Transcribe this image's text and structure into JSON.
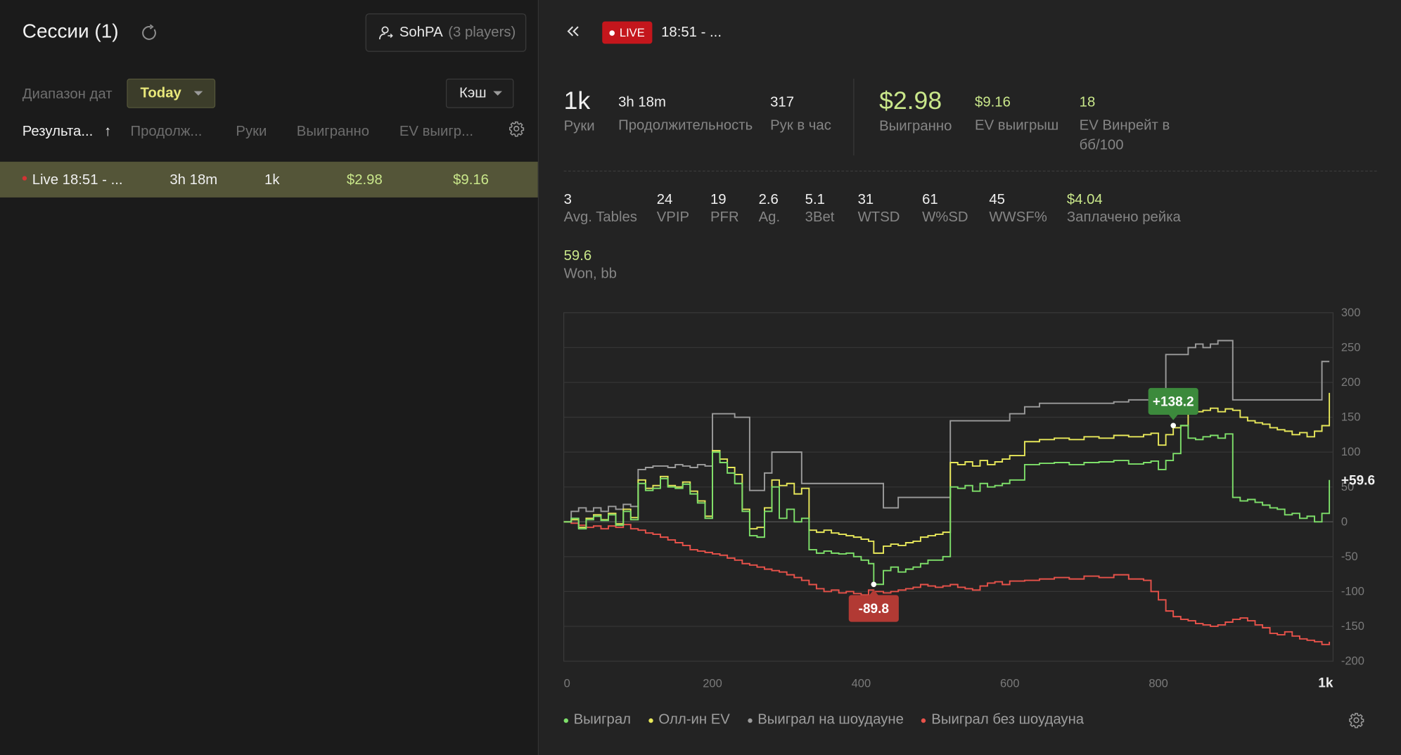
{
  "sessions": {
    "title": "Сессии (1)",
    "player_name": "SohPA",
    "player_count": "(3 players)",
    "date_label": "Диапазон дат",
    "date_value": "Today",
    "game_type": "Кэш",
    "columns": [
      "Результа...",
      "Продолж...",
      "Руки",
      "Выигранно",
      "EV выигр..."
    ],
    "sort_arrow": "↑",
    "rows": [
      {
        "name": "Live 18:51 - ...",
        "duration": "3h 18m",
        "hands": "1k",
        "won": "$2.98",
        "ev": "$9.16"
      }
    ]
  },
  "detail": {
    "live_label": "LIVE",
    "time": "18:51 - ...",
    "stats_top": [
      {
        "value": "1k",
        "label": "Руки"
      },
      {
        "value": "3h 18m",
        "label": "Продолжительность"
      },
      {
        "value": "317",
        "label": "Рук в час"
      },
      {
        "value": "$2.98",
        "label": "Выигранно"
      },
      {
        "value": "$9.16",
        "label": "EV выигрыш"
      },
      {
        "value": "18",
        "label": "EV Винрейт в бб/100"
      }
    ],
    "stats_mid": [
      {
        "value": "3",
        "label": "Avg. Tables"
      },
      {
        "value": "24",
        "label": "VPIP"
      },
      {
        "value": "19",
        "label": "PFR"
      },
      {
        "value": "2.6",
        "label": "Ag."
      },
      {
        "value": "5.1",
        "label": "3Bet"
      },
      {
        "value": "31",
        "label": "WTSD"
      },
      {
        "value": "61",
        "label": "W%SD"
      },
      {
        "value": "45",
        "label": "WWSF%"
      },
      {
        "value": "$4.04",
        "label": "Заплачено рейка"
      }
    ],
    "stats_won": {
      "value": "59.6",
      "label": "Won, bb"
    }
  },
  "colors": {
    "green": "#7ee06a",
    "yellow": "#e8e85a",
    "gray": "#9c9c9c",
    "red": "#e8524a",
    "accent_green_text": "#c9e78a",
    "live_red": "#c4161c"
  },
  "chart_data": {
    "type": "line",
    "x_ticks": [
      "0",
      "200",
      "400",
      "600",
      "800",
      "1k"
    ],
    "y_ticks": [
      "300",
      "250",
      "200",
      "150",
      "100",
      "50",
      "0",
      "-50",
      "-100",
      "-150",
      "-200"
    ],
    "xlim": [
      0,
      1035
    ],
    "ylim": [
      -200,
      300
    ],
    "grid": true,
    "legend_position": "bottom-left",
    "annotations": {
      "max": "+138.2",
      "min": "-89.8",
      "end": "+59.6"
    },
    "max_point": {
      "x": 820,
      "y": 138.2
    },
    "min_point": {
      "x": 417,
      "y": -89.8
    },
    "series": [
      {
        "name": "Выиграл",
        "color_key": "green",
        "x": [
          0,
          10,
          20,
          30,
          40,
          50,
          60,
          70,
          80,
          90,
          100,
          110,
          120,
          130,
          140,
          150,
          160,
          170,
          180,
          190,
          200,
          210,
          220,
          230,
          240,
          250,
          260,
          270,
          280,
          290,
          300,
          310,
          320,
          330,
          340,
          350,
          360,
          370,
          380,
          390,
          400,
          410,
          417,
          430,
          440,
          450,
          460,
          470,
          480,
          490,
          500,
          510,
          520,
          530,
          540,
          550,
          560,
          570,
          580,
          590,
          600,
          620,
          640,
          660,
          680,
          700,
          720,
          740,
          760,
          780,
          790,
          800,
          810,
          820,
          830,
          840,
          850,
          860,
          870,
          880,
          890,
          900,
          910,
          920,
          930,
          940,
          950,
          960,
          970,
          980,
          990,
          1000,
          1010,
          1020,
          1030
        ],
        "y": [
          0,
          5,
          -10,
          3,
          8,
          2,
          10,
          -5,
          15,
          3,
          55,
          45,
          48,
          62,
          50,
          48,
          54,
          40,
          27,
          5,
          100,
          85,
          70,
          55,
          15,
          -20,
          -22,
          15,
          50,
          5,
          18,
          0,
          5,
          -40,
          -45,
          -42,
          -45,
          -46,
          -45,
          -50,
          -55,
          -60,
          -89.8,
          -70,
          -65,
          -72,
          -68,
          -65,
          -60,
          -55,
          -55,
          -50,
          50,
          48,
          52,
          44,
          55,
          50,
          52,
          55,
          60,
          82,
          84,
          85,
          82,
          85,
          86,
          88,
          83,
          85,
          87,
          75,
          88,
          98,
          138.2,
          120,
          118,
          122,
          124,
          120,
          126,
          35,
          30,
          32,
          28,
          24,
          20,
          18,
          10,
          12,
          5,
          8,
          0,
          12,
          60
        ]
      },
      {
        "name": "Олл-ин EV",
        "color_key": "yellow",
        "x": [
          0,
          10,
          20,
          30,
          40,
          50,
          60,
          70,
          80,
          90,
          100,
          110,
          120,
          130,
          140,
          150,
          160,
          170,
          180,
          190,
          200,
          210,
          220,
          230,
          240,
          250,
          260,
          270,
          280,
          290,
          300,
          310,
          320,
          330,
          340,
          350,
          360,
          370,
          380,
          390,
          400,
          410,
          417,
          430,
          440,
          450,
          460,
          470,
          480,
          490,
          500,
          510,
          520,
          530,
          540,
          550,
          560,
          570,
          580,
          590,
          600,
          620,
          640,
          660,
          680,
          700,
          720,
          740,
          760,
          780,
          790,
          800,
          810,
          820,
          830,
          840,
          850,
          860,
          870,
          880,
          890,
          900,
          910,
          920,
          930,
          940,
          950,
          960,
          970,
          980,
          990,
          1000,
          1010,
          1020,
          1030
        ],
        "y": [
          0,
          3,
          -8,
          5,
          10,
          3,
          12,
          -3,
          18,
          6,
          60,
          48,
          52,
          65,
          52,
          50,
          57,
          44,
          30,
          8,
          102,
          90,
          78,
          68,
          18,
          -10,
          -8,
          20,
          60,
          52,
          55,
          40,
          48,
          -12,
          -15,
          -12,
          -16,
          -18,
          -20,
          -22,
          -25,
          -28,
          -45,
          -35,
          -32,
          -34,
          -30,
          -28,
          -22,
          -20,
          -18,
          -15,
          85,
          82,
          86,
          80,
          88,
          82,
          86,
          90,
          95,
          115,
          118,
          120,
          118,
          122,
          120,
          124,
          122,
          125,
          127,
          110,
          125,
          135,
          138,
          155,
          158,
          160,
          163,
          158,
          162,
          160,
          150,
          145,
          142,
          140,
          135,
          132,
          130,
          125,
          128,
          122,
          130,
          138,
          185
        ]
      },
      {
        "name": "Выиграл на шоудауне",
        "color_key": "gray",
        "x": [
          0,
          10,
          20,
          30,
          40,
          50,
          60,
          70,
          80,
          90,
          100,
          110,
          120,
          130,
          140,
          150,
          160,
          170,
          180,
          190,
          200,
          210,
          220,
          230,
          240,
          250,
          260,
          270,
          280,
          290,
          300,
          310,
          320,
          330,
          340,
          350,
          360,
          370,
          380,
          390,
          400,
          410,
          417,
          430,
          440,
          450,
          460,
          470,
          480,
          490,
          500,
          510,
          520,
          530,
          540,
          550,
          560,
          570,
          580,
          590,
          600,
          620,
          640,
          660,
          680,
          700,
          720,
          740,
          760,
          780,
          790,
          800,
          810,
          820,
          830,
          840,
          850,
          860,
          870,
          880,
          890,
          900,
          910,
          920,
          930,
          940,
          950,
          960,
          970,
          980,
          990,
          1000,
          1010,
          1020,
          1030
        ],
        "y": [
          0,
          15,
          20,
          15,
          20,
          15,
          22,
          18,
          25,
          22,
          75,
          78,
          80,
          80,
          78,
          82,
          80,
          78,
          82,
          80,
          155,
          155,
          155,
          150,
          150,
          45,
          45,
          70,
          100,
          100,
          100,
          100,
          55,
          55,
          55,
          55,
          55,
          55,
          55,
          55,
          55,
          55,
          55,
          20,
          20,
          35,
          35,
          35,
          35,
          35,
          35,
          35,
          145,
          145,
          145,
          145,
          145,
          145,
          145,
          145,
          155,
          165,
          170,
          170,
          170,
          170,
          170,
          172,
          175,
          175,
          175,
          185,
          240,
          240,
          240,
          250,
          255,
          250,
          255,
          260,
          260,
          175,
          175,
          175,
          175,
          175,
          175,
          175,
          175,
          175,
          175,
          175,
          175,
          230,
          230
        ]
      },
      {
        "name": "Выиграл без шоудауна",
        "color_key": "red",
        "x": [
          0,
          10,
          20,
          30,
          40,
          50,
          60,
          70,
          80,
          90,
          100,
          110,
          120,
          130,
          140,
          150,
          160,
          170,
          180,
          190,
          200,
          210,
          220,
          230,
          240,
          250,
          260,
          270,
          280,
          290,
          300,
          310,
          320,
          330,
          340,
          350,
          360,
          370,
          380,
          390,
          400,
          410,
          417,
          430,
          440,
          450,
          460,
          470,
          480,
          490,
          500,
          510,
          520,
          530,
          540,
          550,
          560,
          570,
          580,
          590,
          600,
          620,
          640,
          660,
          680,
          700,
          720,
          740,
          760,
          780,
          790,
          800,
          810,
          820,
          830,
          840,
          850,
          860,
          870,
          880,
          890,
          900,
          910,
          920,
          930,
          940,
          950,
          960,
          970,
          980,
          990,
          1000,
          1010,
          1020,
          1030
        ],
        "y": [
          0,
          -2,
          -5,
          -8,
          -6,
          -10,
          -6,
          -8,
          -4,
          -10,
          -12,
          -16,
          -18,
          -22,
          -26,
          -30,
          -34,
          -40,
          -42,
          -44,
          -46,
          -48,
          -52,
          -55,
          -60,
          -62,
          -65,
          -68,
          -70,
          -72,
          -76,
          -80,
          -84,
          -90,
          -96,
          -100,
          -98,
          -102,
          -100,
          -103,
          -105,
          -98,
          -100,
          -102,
          -100,
          -98,
          -96,
          -94,
          -90,
          -92,
          -94,
          -92,
          -90,
          -94,
          -96,
          -98,
          -92,
          -88,
          -86,
          -90,
          -85,
          -84,
          -82,
          -80,
          -82,
          -78,
          -80,
          -76,
          -82,
          -84,
          -100,
          -112,
          -128,
          -136,
          -140,
          -142,
          -146,
          -148,
          -150,
          -148,
          -144,
          -140,
          -138,
          -142,
          -148,
          -152,
          -160,
          -162,
          -158,
          -164,
          -168,
          -170,
          -172,
          -176,
          -172
        ]
      }
    ]
  }
}
